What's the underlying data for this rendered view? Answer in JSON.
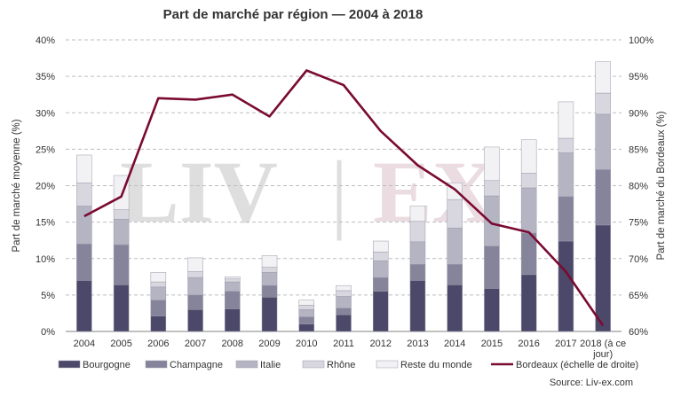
{
  "title": "Part de marché par région — 2004 à 2018",
  "source": "Source: Liv-ex.com",
  "watermark": {
    "left": "LIV",
    "sep": "|",
    "right": "EX"
  },
  "colors": {
    "Bourgogne": "#4b4869",
    "Champagne": "#86849b",
    "Italie": "#b5b4c3",
    "Rhône": "#d8d7df",
    "Reste du monde": "#f2f2f4",
    "Bordeaux": "#7a0a32"
  },
  "chart_data": {
    "type": "bar",
    "stacked": true,
    "title": "Part de marché par région — 2004 à 2018",
    "categories": [
      "2004",
      "2005",
      "2006",
      "2007",
      "2008",
      "2009",
      "2010",
      "2011",
      "2012",
      "2013",
      "2014",
      "2015",
      "2016",
      "2017",
      "2018 (à ce jour)"
    ],
    "series": [
      {
        "name": "Bourgogne",
        "values": [
          7.0,
          6.4,
          2.1,
          3.0,
          3.1,
          4.7,
          1.0,
          2.3,
          5.5,
          7.0,
          6.4,
          5.9,
          7.8,
          12.4,
          14.6
        ]
      },
      {
        "name": "Champagne",
        "values": [
          5.0,
          5.5,
          2.2,
          2.0,
          2.4,
          1.6,
          1.0,
          0.9,
          1.9,
          2.2,
          2.8,
          5.8,
          5.7,
          6.1,
          7.6
        ]
      },
      {
        "name": "Italie",
        "values": [
          5.2,
          3.5,
          1.8,
          2.4,
          1.3,
          1.8,
          1.0,
          1.6,
          2.3,
          3.1,
          5.0,
          6.9,
          6.2,
          6.0,
          7.6
        ]
      },
      {
        "name": "Rhône",
        "values": [
          3.2,
          1.3,
          0.7,
          0.8,
          0.4,
          0.7,
          0.6,
          0.8,
          1.2,
          2.8,
          3.9,
          2.1,
          2.0,
          2.0,
          2.9
        ]
      },
      {
        "name": "Reste du monde",
        "values": [
          3.8,
          4.7,
          1.3,
          1.9,
          0.3,
          1.6,
          0.7,
          0.7,
          1.5,
          2.1,
          2.3,
          4.6,
          4.6,
          5.0,
          4.3
        ]
      },
      {
        "name": "Bordeaux (échelle de droite)",
        "axis": "right",
        "type": "line",
        "values": [
          75.8,
          78.5,
          92.0,
          91.8,
          92.5,
          89.5,
          95.8,
          93.8,
          87.5,
          82.8,
          79.5,
          74.8,
          73.6,
          68.2,
          60.8
        ]
      }
    ],
    "ylabel": "Part de marché moyenne (%)",
    "ylim": [
      0,
      40
    ],
    "yticks": [
      "0%",
      "5%",
      "10%",
      "15%",
      "20%",
      "25%",
      "30%",
      "35%",
      "40%"
    ],
    "y2label": "Part de marché du Bordeaux (%)",
    "y2lim": [
      60,
      100
    ],
    "y2ticks": [
      "60%",
      "65%",
      "70%",
      "75%",
      "80%",
      "85%",
      "90%",
      "95%",
      "100%"
    ],
    "grid": true,
    "legend_position": "bottom"
  }
}
